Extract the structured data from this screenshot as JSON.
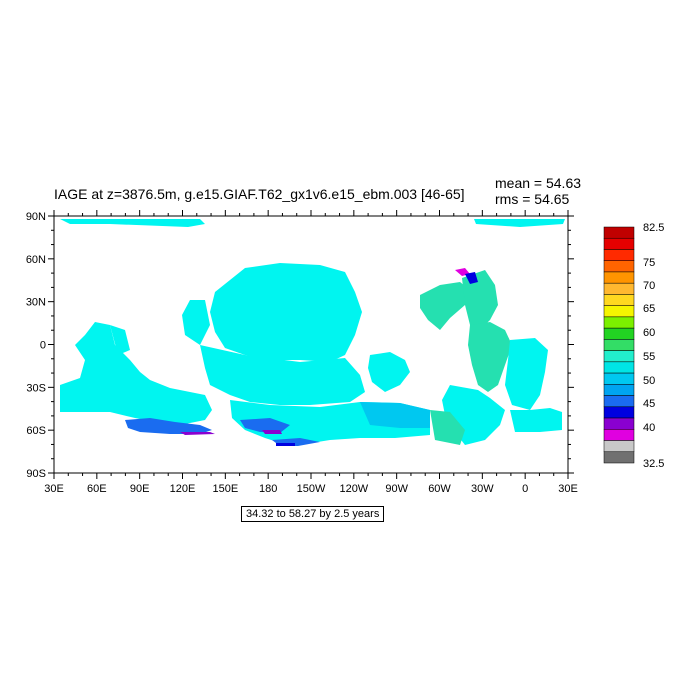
{
  "header": {
    "title": "IAGE at z=3876.5m, g.e15.GIAF.T62_gx1v6.e15_ebm.003 [46-65]",
    "mean": "mean = 54.63",
    "rms": "rms = 54.65"
  },
  "footer": {
    "contour_info": "34.32 to 58.27 by 2.5 years"
  },
  "chart_data": {
    "type": "heatmap",
    "title": "IAGE at z=3876.5m, g.e15.GIAF.T62_gx1v6.e15_ebm.003 [46-65]",
    "xlabel": "",
    "ylabel": "",
    "x_ticks": [
      "30E",
      "60E",
      "90E",
      "120E",
      "150E",
      "180",
      "150W",
      "120W",
      "90W",
      "60W",
      "30W",
      "0",
      "30E"
    ],
    "y_ticks": [
      "90N",
      "60N",
      "30N",
      "0",
      "30S",
      "60S",
      "90S"
    ],
    "xlim": [
      30,
      390
    ],
    "ylim": [
      -90,
      90
    ],
    "colorbar": {
      "labels": [
        "82.5",
        "75",
        "70",
        "65",
        "60",
        "55",
        "50",
        "45",
        "40",
        "32.5"
      ],
      "colors": [
        "#c00000",
        "#e50000",
        "#ff2a00",
        "#ff6400",
        "#ff9400",
        "#ffb830",
        "#ffd820",
        "#f5f500",
        "#7cf000",
        "#22d422",
        "#33dd66",
        "#22eecc",
        "#00e5e5",
        "#00c8f0",
        "#00a4f0",
        "#1a6cf0",
        "#0000e0",
        "#8a00d0",
        "#e000e0",
        "#c8c8c8",
        "#707070"
      ]
    },
    "grid": false,
    "summary": {
      "mean": 54.63,
      "rms": 54.65
    }
  },
  "colors": {
    "ocean_main": "#00f5f0",
    "ocean_light": "#20e8e8",
    "ocean_green": "#25e0b0",
    "ocean_blue": "#00c8f0",
    "deep_blue": "#1a6cf0",
    "dark_blue": "#0000e0",
    "purple": "#8a00d0",
    "magenta": "#e000e0"
  }
}
